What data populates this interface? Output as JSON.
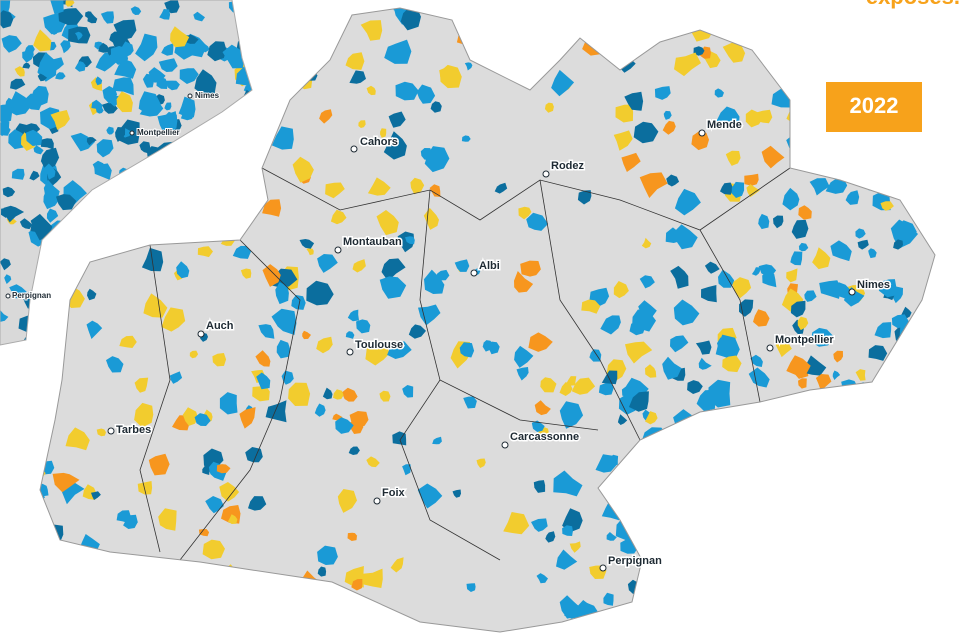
{
  "header": {
    "title": "exposés.",
    "year": "2022"
  },
  "inset_cities": [
    "Nimes",
    "Montpellier",
    "Perpignan"
  ],
  "cities": [
    "Cahors",
    "Rodez",
    "Mende",
    "Montauban",
    "Albi",
    "Nimes",
    "Montpellier",
    "Auch",
    "Toulouse",
    "Tarbes",
    "Carcassonne",
    "Foix",
    "Perpignan"
  ]
}
